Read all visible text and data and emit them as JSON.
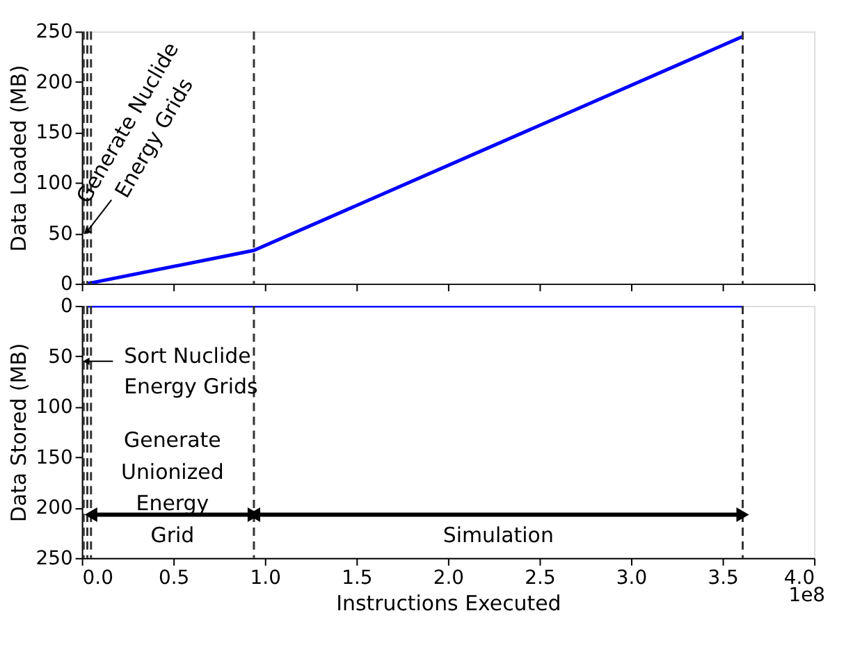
{
  "chart_data": [
    {
      "type": "line",
      "ylabel": "Data Loaded (MB)",
      "x": [
        0.03,
        0.94,
        3.61
      ],
      "series": [
        {
          "color": "#0000ff",
          "values": [
            0,
            33,
            245
          ]
        }
      ],
      "xlim": [
        0,
        4
      ],
      "xticks": [
        {
          "value": 0,
          "label": null
        },
        {
          "value": 0.5,
          "label": null
        },
        {
          "value": 1,
          "label": null
        },
        {
          "value": 1.5,
          "label": null
        },
        {
          "value": 2,
          "label": null
        },
        {
          "value": 2.5,
          "label": null
        },
        {
          "value": 3,
          "label": null
        },
        {
          "value": 3.5,
          "label": null
        },
        {
          "value": 4,
          "label": null
        }
      ],
      "ylim": [
        0,
        250
      ],
      "yticks": [
        0,
        50,
        100,
        150,
        200,
        250
      ],
      "tick_labels": "y",
      "grid": false,
      "line_style": "solid",
      "marker": "none",
      "ref_lines": [
        {
          "axis": "x",
          "value": 0.01,
          "color": "#333333",
          "line_style": "dashed"
        },
        {
          "axis": "x",
          "value": 0.03,
          "color": "#333333",
          "line_style": "dashed"
        },
        {
          "axis": "x",
          "value": 0.05,
          "color": "#333333",
          "line_style": "dashed"
        },
        {
          "axis": "x",
          "value": 0.94,
          "color": "#333333",
          "line_style": "dashed"
        },
        {
          "axis": "x",
          "value": 3.61,
          "color": "#333333",
          "line_style": "dashed"
        }
      ],
      "annotations": [
        {
          "text": "Generate Nuclide Energy Grids",
          "x": 0.03,
          "y": 52
        }
      ]
    },
    {
      "type": "line",
      "ylabel": "Data Stored (MB)",
      "xlabel": "Instructions Executed",
      "x": [
        0.03,
        3.61
      ],
      "series": [
        {
          "color": "#0000ff",
          "values": [
            0,
            0
          ]
        }
      ],
      "xlim": [
        0,
        4
      ],
      "xticks": [
        {
          "value": 0,
          "label": "0.0"
        },
        {
          "value": 0.5,
          "label": "0.5"
        },
        {
          "value": 1,
          "label": "1.0"
        },
        {
          "value": 1.5,
          "label": "1.5"
        },
        {
          "value": 2,
          "label": "2.0"
        },
        {
          "value": 2.5,
          "label": "2.5"
        },
        {
          "value": 3,
          "label": "3.0"
        },
        {
          "value": 3.5,
          "label": "3.5"
        },
        {
          "value": 4,
          "label": "4.0"
        }
      ],
      "ylim": [
        250,
        0
      ],
      "yticks": [
        0,
        50,
        100,
        150,
        200,
        250
      ],
      "grid": false,
      "line_style": "solid",
      "marker": "none",
      "ref_lines": [
        {
          "axis": "x",
          "value": 0.01,
          "color": "#333333",
          "line_style": "dashed"
        },
        {
          "axis": "x",
          "value": 0.03,
          "color": "#333333",
          "line_style": "dashed"
        },
        {
          "axis": "x",
          "value": 0.05,
          "color": "#333333",
          "line_style": "dashed"
        },
        {
          "axis": "x",
          "value": 0.94,
          "color": "#333333",
          "line_style": "dashed"
        },
        {
          "axis": "x",
          "value": 3.61,
          "color": "#333333",
          "line_style": "dashed"
        }
      ],
      "annotations": [
        {
          "text": "Sort Nuclide Energy Grids",
          "x": 0.03,
          "y": 55
        },
        "Generate Unionized Energy Grid",
        "Simulation",
        "1e8"
      ]
    }
  ]
}
